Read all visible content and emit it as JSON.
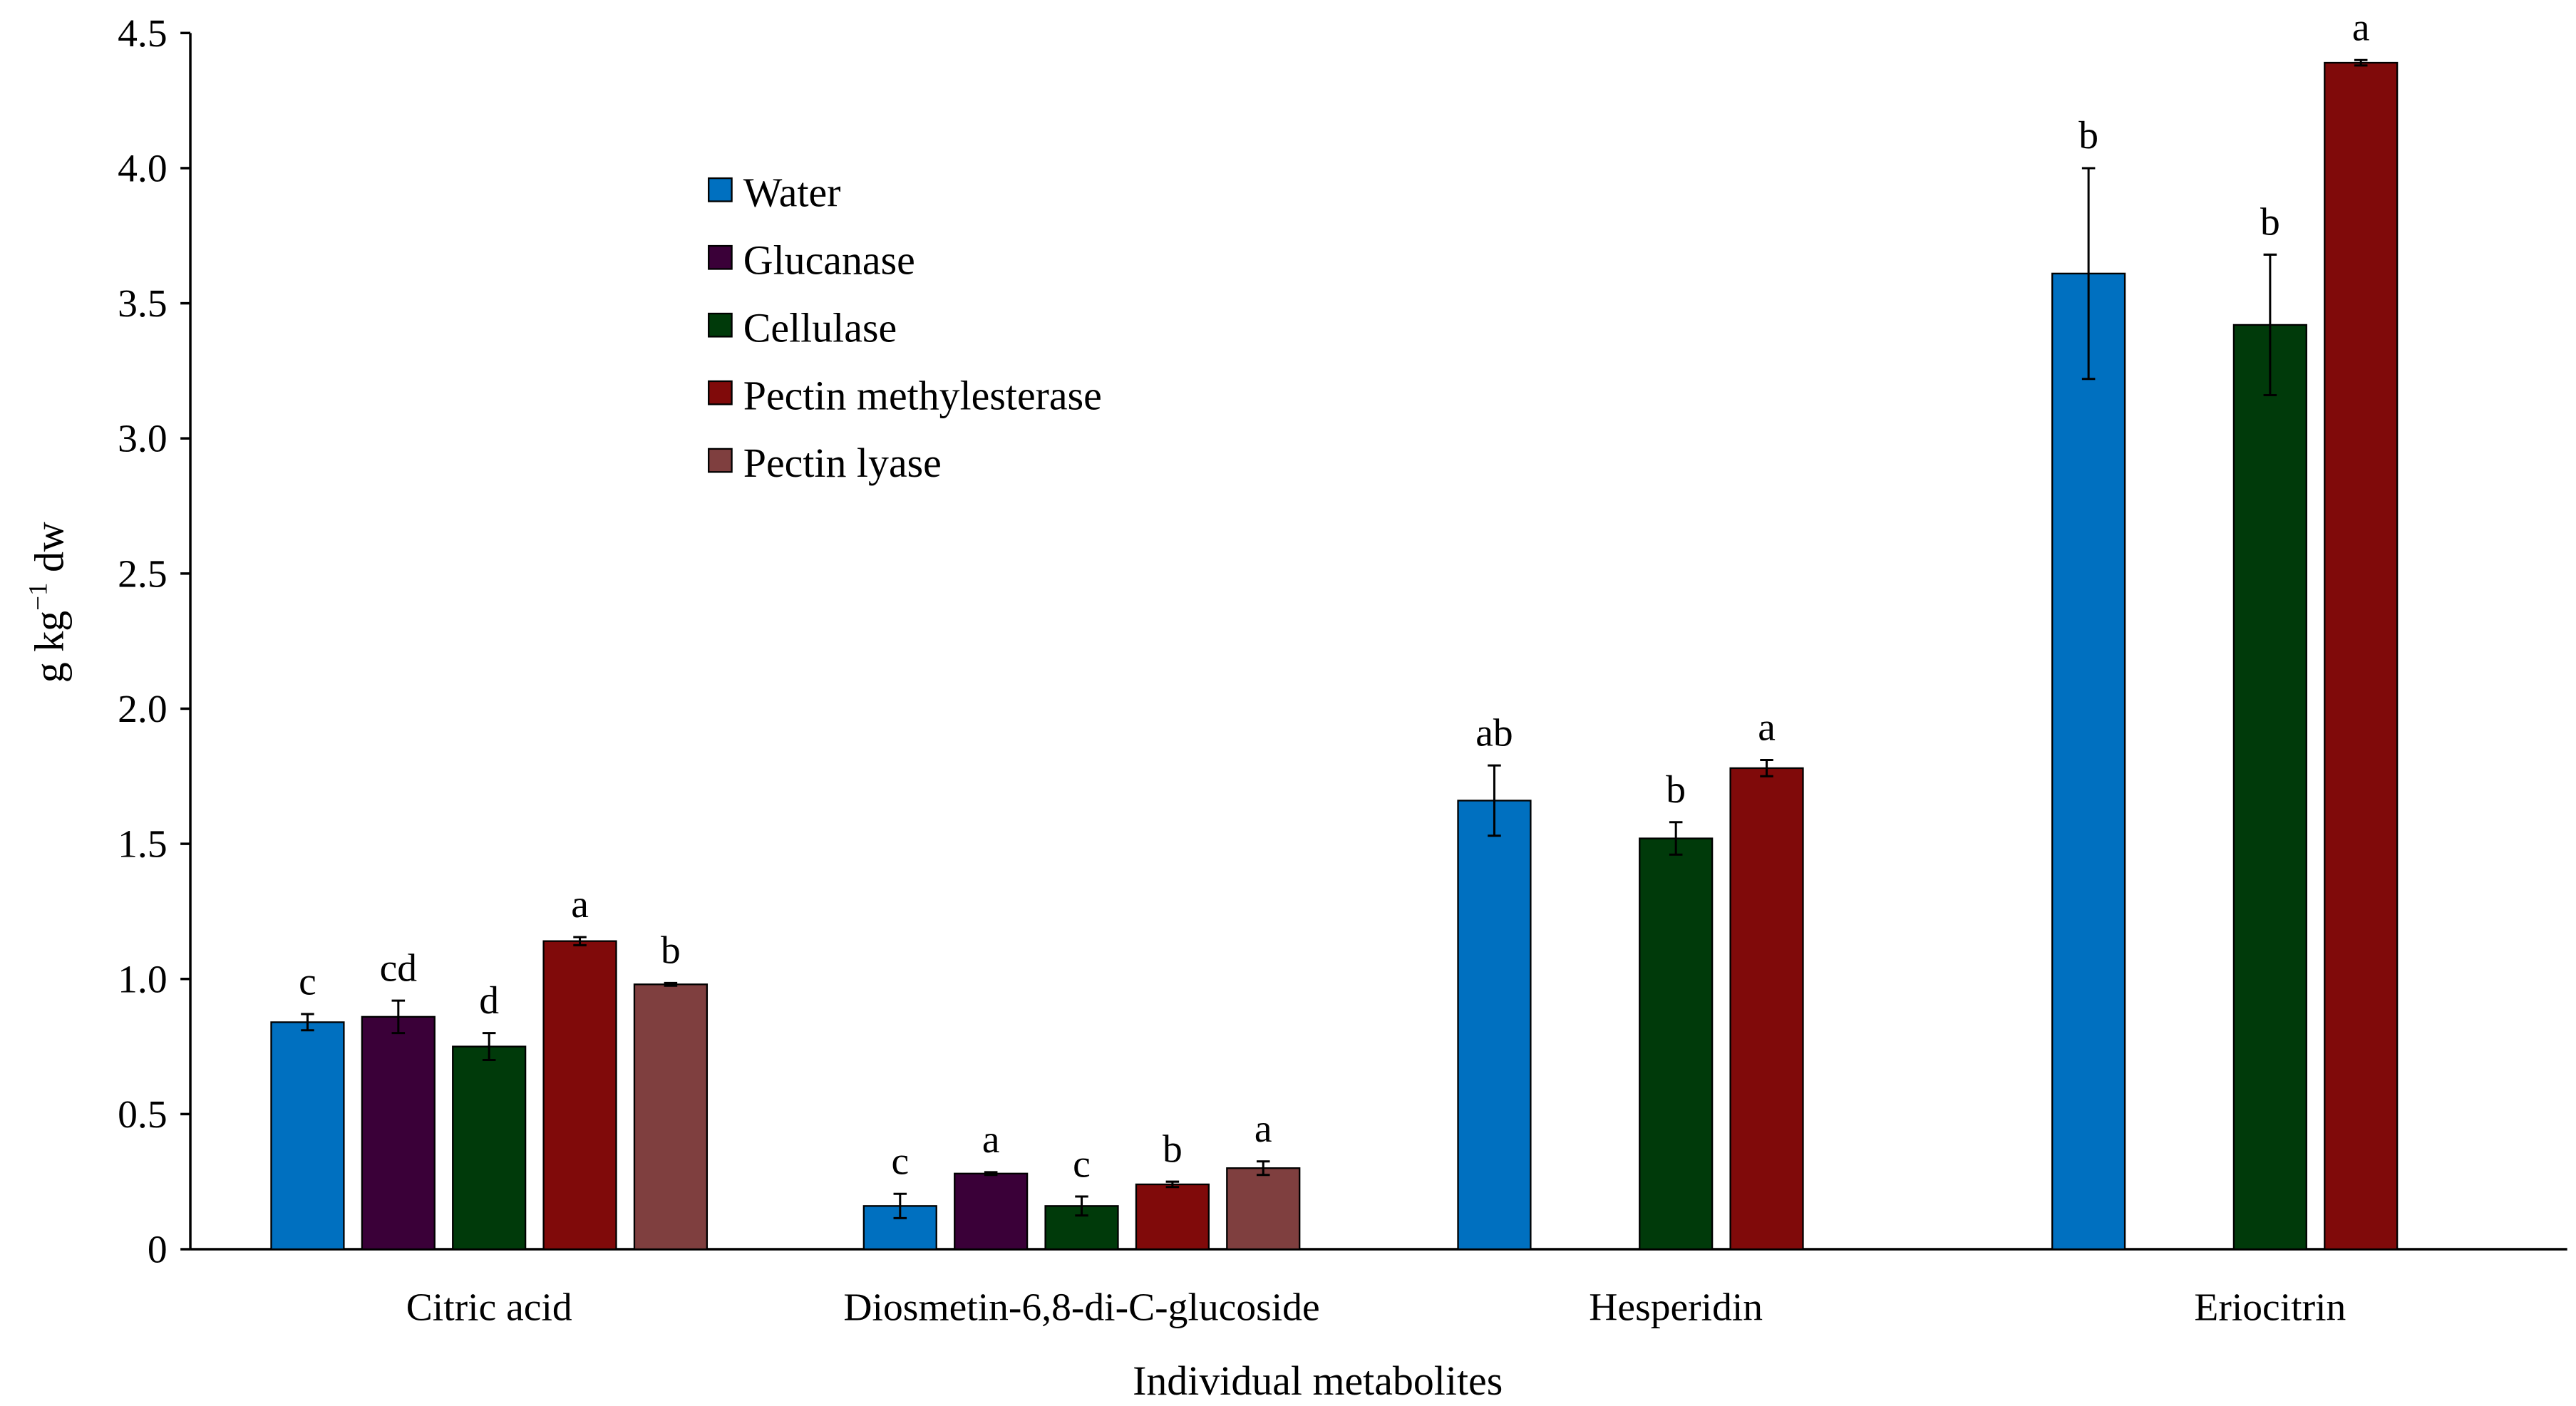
{
  "chart_data": {
    "type": "bar",
    "xlabel": "Individual metabolites",
    "ylabel": "g kg",
    "ylabel_sup": "−1",
    "ylabel_suffix": " dw",
    "ylim": [
      0,
      4.5
    ],
    "yticks": [
      "0",
      "0.5",
      "1.0",
      "1.5",
      "2.0",
      "2.5",
      "3.0",
      "3.5",
      "4.0",
      "4.5"
    ],
    "grid": false,
    "legend_position": "top-left",
    "categories": [
      "Citric acid",
      "Diosmetin-6,8-di-C-glucoside",
      "Hesperidin",
      "Eriocitrin"
    ],
    "series": [
      {
        "name": "Water",
        "color": "#0070C0",
        "values": [
          0.84,
          0.16,
          1.66,
          3.61
        ],
        "errors": [
          0.03,
          0.045,
          0.13,
          0.39
        ],
        "letters": [
          "c",
          "c",
          "ab",
          "b"
        ]
      },
      {
        "name": "Glucanase",
        "color": "#3A0038",
        "values": [
          0.86,
          0.28,
          null,
          null
        ],
        "errors": [
          0.06,
          0.005,
          null,
          null
        ],
        "letters": [
          "cd",
          "a",
          "",
          ""
        ]
      },
      {
        "name": "Cellulase",
        "color": "#003A0A",
        "values": [
          0.75,
          0.16,
          1.52,
          3.42
        ],
        "errors": [
          0.05,
          0.035,
          0.06,
          0.26
        ],
        "letters": [
          "d",
          "c",
          "b",
          "b"
        ]
      },
      {
        "name": "Pectin methylesterase",
        "color": "#800A0A",
        "values": [
          1.14,
          0.24,
          1.78,
          4.39
        ],
        "errors": [
          0.015,
          0.01,
          0.03,
          0.01
        ],
        "letters": [
          "a",
          "b",
          "a",
          "a"
        ]
      },
      {
        "name": "Pectin lyase",
        "color": "#7F3F3F",
        "values": [
          0.98,
          0.3,
          null,
          null
        ],
        "errors": [
          0.005,
          0.025,
          null,
          null
        ],
        "letters": [
          "b",
          "a",
          "",
          ""
        ]
      }
    ]
  }
}
